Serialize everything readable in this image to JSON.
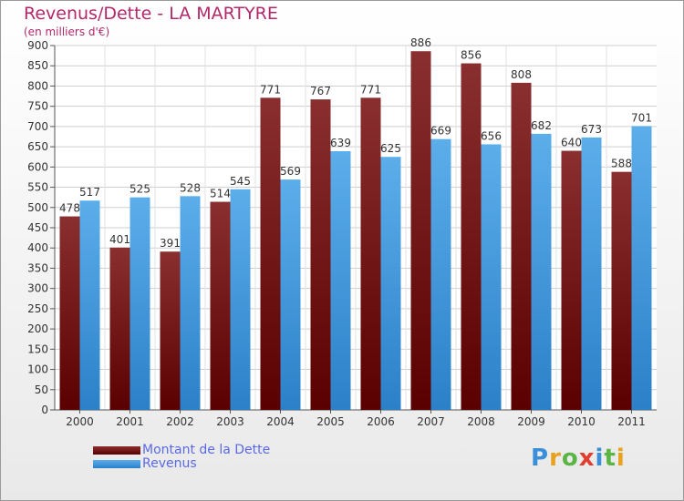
{
  "chart_title": "Revenus/Dette - LA MARTYRE",
  "chart_subtitle": "(en milliers d'€)",
  "logo": {
    "text": "Proxiti",
    "letters": [
      {
        "ch": "P",
        "color": "#3a8fd9"
      },
      {
        "ch": "r",
        "color": "#e8a21c"
      },
      {
        "ch": "o",
        "color": "#5bb545"
      },
      {
        "ch": "x",
        "color": "#e03e2f"
      },
      {
        "ch": "i",
        "color": "#3a8fd9"
      },
      {
        "ch": "t",
        "color": "#5bb545"
      },
      {
        "ch": "i",
        "color": "#e8a21c"
      }
    ]
  },
  "legend": [
    {
      "label": "Montant de la Dette",
      "color": "#6e0f12"
    },
    {
      "label": "Revenus",
      "color": "#4aa0e6"
    }
  ],
  "chart_data": {
    "type": "bar",
    "title": "Revenus/Dette - LA MARTYRE",
    "subtitle": "(en milliers d'€)",
    "categories": [
      "2000",
      "2001",
      "2002",
      "2003",
      "2004",
      "2005",
      "2006",
      "2007",
      "2008",
      "2009",
      "2010",
      "2011"
    ],
    "series": [
      {
        "name": "Montant de la Dette",
        "color": "#6e0f12",
        "values": [
          478,
          401,
          391,
          514,
          771,
          767,
          771,
          886,
          856,
          808,
          640,
          588
        ]
      },
      {
        "name": "Revenus",
        "color": "#4aa0e6",
        "values": [
          517,
          525,
          528,
          545,
          569,
          639,
          625,
          669,
          656,
          682,
          673,
          701
        ]
      }
    ],
    "ylim": [
      0,
      900
    ],
    "ytick_step": 50,
    "grid": true,
    "data_labels": true,
    "legend_position": "bottom-left"
  }
}
